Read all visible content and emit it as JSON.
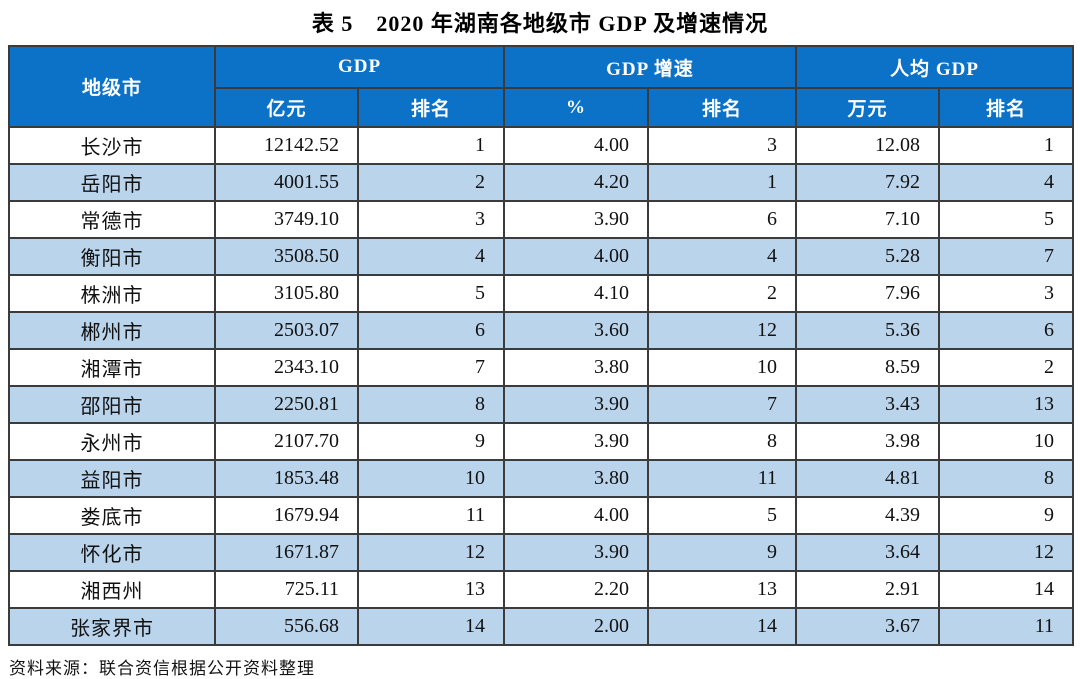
{
  "title": "表 5　2020 年湖南各地级市 GDP 及增速情况",
  "source_note": "资料来源：联合资信根据公开资料整理",
  "colors": {
    "header_bg": "#0b72c8",
    "header_text": "#ffffff",
    "row_alt_bg": "#bad4ec",
    "border": "#3b3b3b"
  },
  "table": {
    "col_city_header": "地级市",
    "groups": [
      {
        "label": "GDP",
        "sub": [
          "亿元",
          "排名"
        ]
      },
      {
        "label": "GDP 增速",
        "sub": [
          "%",
          "排名"
        ]
      },
      {
        "label": "人均 GDP",
        "sub": [
          "万元",
          "排名"
        ]
      }
    ],
    "rows": [
      {
        "city": "长沙市",
        "gdp": "12142.52",
        "gdp_rank": "1",
        "growth": "4.00",
        "growth_rank": "3",
        "pc_gdp": "12.08",
        "pc_rank": "1"
      },
      {
        "city": "岳阳市",
        "gdp": "4001.55",
        "gdp_rank": "2",
        "growth": "4.20",
        "growth_rank": "1",
        "pc_gdp": "7.92",
        "pc_rank": "4"
      },
      {
        "city": "常德市",
        "gdp": "3749.10",
        "gdp_rank": "3",
        "growth": "3.90",
        "growth_rank": "6",
        "pc_gdp": "7.10",
        "pc_rank": "5"
      },
      {
        "city": "衡阳市",
        "gdp": "3508.50",
        "gdp_rank": "4",
        "growth": "4.00",
        "growth_rank": "4",
        "pc_gdp": "5.28",
        "pc_rank": "7"
      },
      {
        "city": "株洲市",
        "gdp": "3105.80",
        "gdp_rank": "5",
        "growth": "4.10",
        "growth_rank": "2",
        "pc_gdp": "7.96",
        "pc_rank": "3"
      },
      {
        "city": "郴州市",
        "gdp": "2503.07",
        "gdp_rank": "6",
        "growth": "3.60",
        "growth_rank": "12",
        "pc_gdp": "5.36",
        "pc_rank": "6"
      },
      {
        "city": "湘潭市",
        "gdp": "2343.10",
        "gdp_rank": "7",
        "growth": "3.80",
        "growth_rank": "10",
        "pc_gdp": "8.59",
        "pc_rank": "2"
      },
      {
        "city": "邵阳市",
        "gdp": "2250.81",
        "gdp_rank": "8",
        "growth": "3.90",
        "growth_rank": "7",
        "pc_gdp": "3.43",
        "pc_rank": "13"
      },
      {
        "city": "永州市",
        "gdp": "2107.70",
        "gdp_rank": "9",
        "growth": "3.90",
        "growth_rank": "8",
        "pc_gdp": "3.98",
        "pc_rank": "10"
      },
      {
        "city": "益阳市",
        "gdp": "1853.48",
        "gdp_rank": "10",
        "growth": "3.80",
        "growth_rank": "11",
        "pc_gdp": "4.81",
        "pc_rank": "8"
      },
      {
        "city": "娄底市",
        "gdp": "1679.94",
        "gdp_rank": "11",
        "growth": "4.00",
        "growth_rank": "5",
        "pc_gdp": "4.39",
        "pc_rank": "9"
      },
      {
        "city": "怀化市",
        "gdp": "1671.87",
        "gdp_rank": "12",
        "growth": "3.90",
        "growth_rank": "9",
        "pc_gdp": "3.64",
        "pc_rank": "12"
      },
      {
        "city": "湘西州",
        "gdp": "725.11",
        "gdp_rank": "13",
        "growth": "2.20",
        "growth_rank": "13",
        "pc_gdp": "2.91",
        "pc_rank": "14"
      },
      {
        "city": "张家界市",
        "gdp": "556.68",
        "gdp_rank": "14",
        "growth": "2.00",
        "growth_rank": "14",
        "pc_gdp": "3.67",
        "pc_rank": "11"
      }
    ]
  }
}
